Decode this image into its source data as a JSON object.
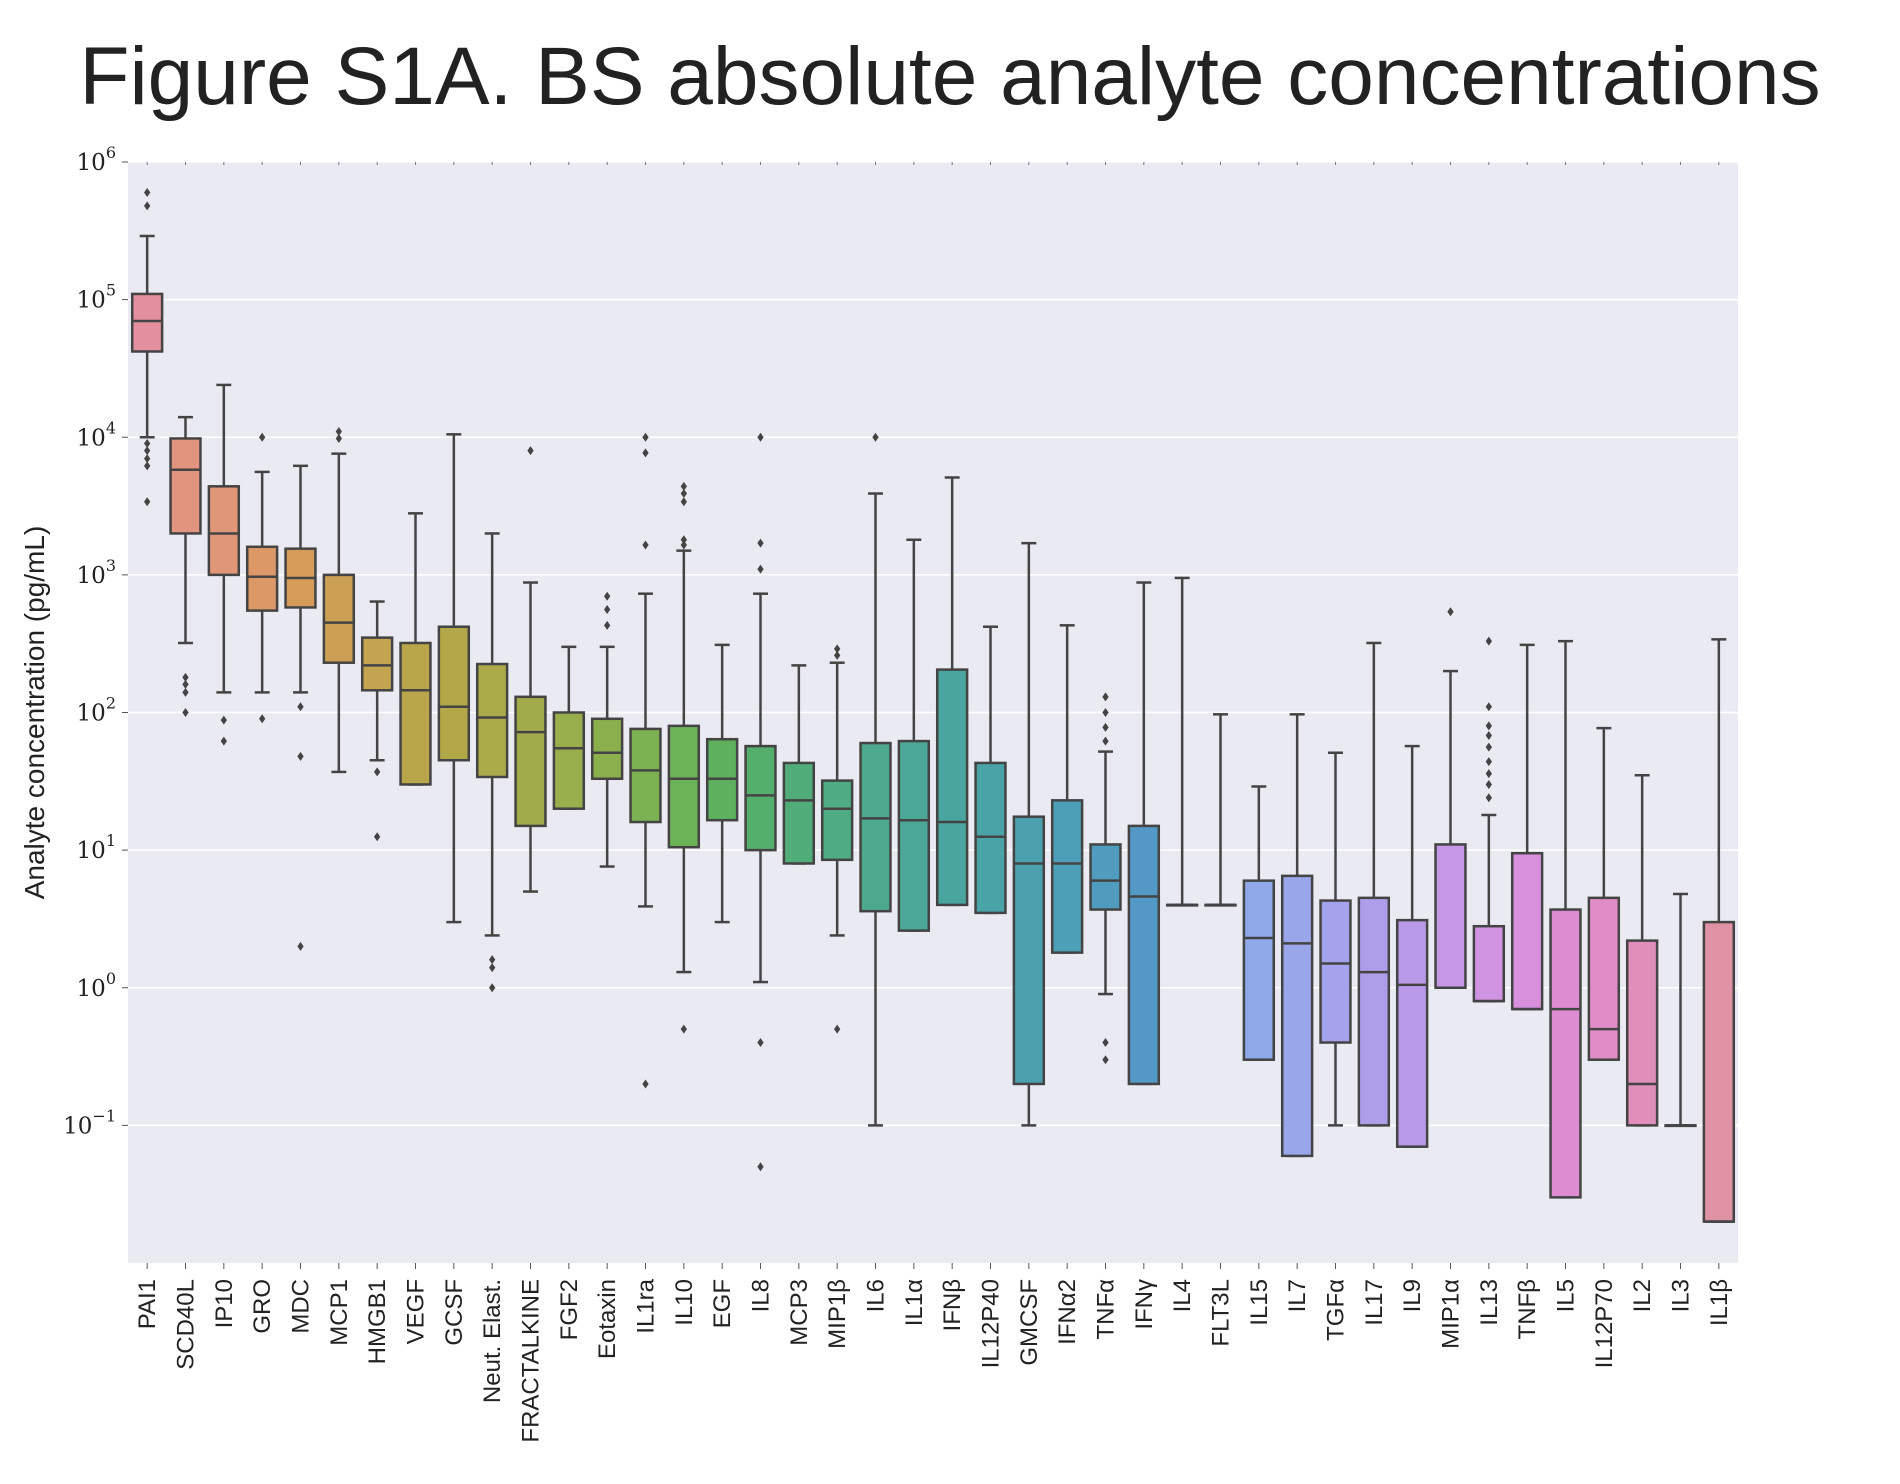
{
  "title": "Figure S1A. BS absolute analyte concentrations",
  "chart_data": {
    "type": "box",
    "ylabel": "Analyte concentration (pg/mL)",
    "xlabel": "",
    "yscale": "log",
    "ylim": [
      0.01,
      1000000
    ],
    "yticks": [
      {
        "value": 0.1,
        "base": "10",
        "exp": "−1"
      },
      {
        "value": 1,
        "base": "10",
        "exp": "0"
      },
      {
        "value": 10,
        "base": "10",
        "exp": "1"
      },
      {
        "value": 100,
        "base": "10",
        "exp": "2"
      },
      {
        "value": 1000,
        "base": "10",
        "exp": "3"
      },
      {
        "value": 10000,
        "base": "10",
        "exp": "4"
      },
      {
        "value": 100000,
        "base": "10",
        "exp": "5"
      },
      {
        "value": 1000000,
        "base": "10",
        "exp": "6"
      }
    ],
    "grid": true,
    "background": "#eaeaf2",
    "edge_color": "#444444",
    "categories": [
      "PAI1",
      "SCD40L",
      "IP10",
      "GRO",
      "MDC",
      "MCP1",
      "HMGB1",
      "VEGF",
      "GCSF",
      "Neut. Elast.",
      "FRACTALKINE",
      "FGF2",
      "Eotaxin",
      "IL1ra",
      "IL10",
      "EGF",
      "IL8",
      "MCP3",
      "MIP1β",
      "IL6",
      "IL1α",
      "IFNβ",
      "IL12P40",
      "GMCSF",
      "IFNα2",
      "TNFα",
      "IFNγ",
      "IL4",
      "FLT3L",
      "IL15",
      "IL7",
      "TGFα",
      "IL17",
      "IL9",
      "MIP1α",
      "IL13",
      "TNFβ",
      "IL5",
      "IL12P70",
      "IL2",
      "IL3",
      "IL1β"
    ],
    "boxes": [
      {
        "name": "PAI1",
        "color": "#e2909f",
        "whislo": 10000,
        "q1": 42000,
        "med": 70000,
        "q3": 110000,
        "whishi": 290000,
        "fliers": [
          3400,
          6200,
          7000,
          8000,
          9000,
          480000,
          600000
        ]
      },
      {
        "name": "SCD40L",
        "color": "#e2947f",
        "whislo": 320,
        "q1": 2000,
        "med": 5800,
        "q3": 9800,
        "whishi": 14000,
        "fliers": [
          100,
          140,
          160,
          180
        ]
      },
      {
        "name": "IP10",
        "color": "#e09678",
        "whislo": 140,
        "q1": 1000,
        "med": 2000,
        "q3": 4400,
        "whishi": 24000,
        "fliers": [
          62,
          88
        ]
      },
      {
        "name": "GRO",
        "color": "#dc9866",
        "whislo": 140,
        "q1": 550,
        "med": 970,
        "q3": 1600,
        "whishi": 5600,
        "fliers": [
          90,
          10000
        ]
      },
      {
        "name": "MDC",
        "color": "#d69c5a",
        "whislo": 140,
        "q1": 580,
        "med": 950,
        "q3": 1550,
        "whishi": 6200,
        "fliers": [
          2,
          48,
          110
        ]
      },
      {
        "name": "MCP1",
        "color": "#cca054",
        "whislo": 37,
        "q1": 230,
        "med": 450,
        "q3": 1000,
        "whishi": 7600,
        "fliers": [
          9800,
          11000
        ]
      },
      {
        "name": "HMGB1",
        "color": "#c4a450",
        "whislo": 45,
        "q1": 145,
        "med": 220,
        "q3": 350,
        "whishi": 640,
        "fliers": [
          12.5,
          37
        ]
      },
      {
        "name": "VEGF",
        "color": "#baa64a",
        "whislo": 30,
        "q1": 30,
        "med": 145,
        "q3": 320,
        "whishi": 2800,
        "fliers": []
      },
      {
        "name": "GCSF",
        "color": "#b2a848",
        "whislo": 3,
        "q1": 45,
        "med": 110,
        "q3": 420,
        "whishi": 10500,
        "fliers": []
      },
      {
        "name": "Neut. Elast.",
        "color": "#aaaa48",
        "whislo": 2.4,
        "q1": 34,
        "med": 92,
        "q3": 225,
        "whishi": 2000,
        "fliers": [
          1,
          1.4,
          1.6
        ]
      },
      {
        "name": "FRACTALKINE",
        "color": "#a2ab4a",
        "whislo": 5,
        "q1": 15,
        "med": 72,
        "q3": 130,
        "whishi": 880,
        "fliers": [
          8000
        ]
      },
      {
        "name": "FGF2",
        "color": "#98ad4c",
        "whislo": 20,
        "q1": 20,
        "med": 55,
        "q3": 100,
        "whishi": 300,
        "fliers": []
      },
      {
        "name": "Eotaxin",
        "color": "#8caf4e",
        "whislo": 7.6,
        "q1": 33,
        "med": 51,
        "q3": 90,
        "whishi": 300,
        "fliers": [
          430,
          560,
          700
        ]
      },
      {
        "name": "IL1ra",
        "color": "#7cb152",
        "whislo": 3.9,
        "q1": 16,
        "med": 38,
        "q3": 76,
        "whishi": 730,
        "fliers": [
          0.2,
          1650,
          7700,
          10000
        ]
      },
      {
        "name": "IL10",
        "color": "#6cb256",
        "whislo": 1.3,
        "q1": 10.5,
        "med": 33,
        "q3": 80,
        "whishi": 1500,
        "fliers": [
          0.5,
          1650,
          1800,
          3400,
          3900,
          4400
        ]
      },
      {
        "name": "EGF",
        "color": "#5cb05e",
        "whislo": 3,
        "q1": 16.5,
        "med": 33,
        "q3": 64,
        "whishi": 310,
        "fliers": []
      },
      {
        "name": "IL8",
        "color": "#54ae6c",
        "whislo": 1.1,
        "q1": 10,
        "med": 25,
        "q3": 57,
        "whishi": 730,
        "fliers": [
          0.05,
          0.4,
          1100,
          1700,
          10000
        ]
      },
      {
        "name": "MCP3",
        "color": "#50ad7a",
        "whislo": 8,
        "q1": 8,
        "med": 23,
        "q3": 43,
        "whishi": 220,
        "fliers": []
      },
      {
        "name": "MIP1β",
        "color": "#4eab84",
        "whislo": 2.4,
        "q1": 8.5,
        "med": 20,
        "q3": 32,
        "whishi": 230,
        "fliers": [
          0.5,
          260,
          290
        ]
      },
      {
        "name": "IL6",
        "color": "#4ca98e",
        "whislo": 0.1,
        "q1": 3.6,
        "med": 17,
        "q3": 60,
        "whishi": 3900,
        "fliers": [
          10000
        ]
      },
      {
        "name": "IL1α",
        "color": "#4ba796",
        "whislo": 2.6,
        "q1": 2.6,
        "med": 16.5,
        "q3": 62,
        "whishi": 1800,
        "fliers": []
      },
      {
        "name": "IFNβ",
        "color": "#4aa59e",
        "whislo": 4,
        "q1": 4,
        "med": 16,
        "q3": 205,
        "whishi": 5100,
        "fliers": []
      },
      {
        "name": "IL12P40",
        "color": "#4aa3a6",
        "whislo": 3.5,
        "q1": 3.5,
        "med": 12.5,
        "q3": 43,
        "whishi": 420,
        "fliers": []
      },
      {
        "name": "GMCSF",
        "color": "#4ba1ae",
        "whislo": 0.1,
        "q1": 0.2,
        "med": 8,
        "q3": 17.5,
        "whishi": 1700,
        "fliers": []
      },
      {
        "name": "IFNα2",
        "color": "#4c9fb6",
        "whislo": 1.8,
        "q1": 1.8,
        "med": 8,
        "q3": 23,
        "whishi": 430,
        "fliers": []
      },
      {
        "name": "TNFα",
        "color": "#4f9cbe",
        "whislo": 0.9,
        "q1": 3.7,
        "med": 6,
        "q3": 11,
        "whishi": 52,
        "fliers": [
          0.3,
          0.4,
          62,
          78,
          100,
          130
        ]
      },
      {
        "name": "IFNγ",
        "color": "#5498c6",
        "whislo": 0.2,
        "q1": 0.2,
        "med": 4.6,
        "q3": 15,
        "whishi": 880,
        "fliers": []
      },
      {
        "name": "IL4",
        "color": "#5c95cc",
        "whislo": 4,
        "q1": 4,
        "med": 4,
        "q3": 4,
        "whishi": 950,
        "fliers": []
      },
      {
        "name": "FLT3L",
        "color": "#6992d0",
        "whislo": 4,
        "q1": 4,
        "med": 4,
        "q3": 4,
        "whishi": 97,
        "fliers": []
      },
      {
        "name": "IL15",
        "color": "#8ea8e8",
        "whislo": 0.3,
        "q1": 0.3,
        "med": 2.3,
        "q3": 6,
        "whishi": 29,
        "fliers": []
      },
      {
        "name": "IL7",
        "color": "#9aa6ea",
        "whislo": 0.06,
        "q1": 0.06,
        "med": 2.1,
        "q3": 6.5,
        "whishi": 97,
        "fliers": []
      },
      {
        "name": "TGFα",
        "color": "#a4a2ea",
        "whislo": 0.1,
        "q1": 0.4,
        "med": 1.5,
        "q3": 4.3,
        "whishi": 51,
        "fliers": []
      },
      {
        "name": "IL17",
        "color": "#ae9eea",
        "whislo": 0.1,
        "q1": 0.1,
        "med": 1.3,
        "q3": 4.5,
        "whishi": 320,
        "fliers": []
      },
      {
        "name": "IL9",
        "color": "#b89ae8",
        "whislo": 0.07,
        "q1": 0.07,
        "med": 1.05,
        "q3": 3.1,
        "whishi": 57,
        "fliers": []
      },
      {
        "name": "MIP1α",
        "color": "#c498e6",
        "whislo": 1,
        "q1": 1,
        "med": 1,
        "q3": 11,
        "whishi": 200,
        "fliers": [
          540
        ]
      },
      {
        "name": "IL13",
        "color": "#d094e2",
        "whislo": 0.8,
        "q1": 0.8,
        "med": 0.8,
        "q3": 2.8,
        "whishi": 18,
        "fliers": [
          24,
          30,
          36,
          44,
          56,
          68,
          80,
          110,
          330
        ]
      },
      {
        "name": "TNFβ",
        "color": "#d890dc",
        "whislo": 0.7,
        "q1": 0.7,
        "med": 0.7,
        "q3": 9.5,
        "whishi": 310,
        "fliers": []
      },
      {
        "name": "IL5",
        "color": "#de8cd2",
        "whislo": 0.03,
        "q1": 0.03,
        "med": 0.7,
        "q3": 3.7,
        "whishi": 330,
        "fliers": []
      },
      {
        "name": "IL12P70",
        "color": "#e08cc6",
        "whislo": 0.3,
        "q1": 0.3,
        "med": 0.5,
        "q3": 4.5,
        "whishi": 77,
        "fliers": []
      },
      {
        "name": "IL2",
        "color": "#e08eba",
        "whislo": 0.1,
        "q1": 0.1,
        "med": 0.2,
        "q3": 2.2,
        "whishi": 35,
        "fliers": []
      },
      {
        "name": "IL3",
        "color": "#df90ae",
        "whislo": 0.1,
        "q1": 0.1,
        "med": 0.1,
        "q3": 0.1,
        "whishi": 4.8,
        "fliers": []
      },
      {
        "name": "IL1β",
        "color": "#de92a4",
        "whislo": 0.02,
        "q1": 0.02,
        "med": 0.02,
        "q3": 3,
        "whishi": 340,
        "fliers": []
      }
    ]
  }
}
